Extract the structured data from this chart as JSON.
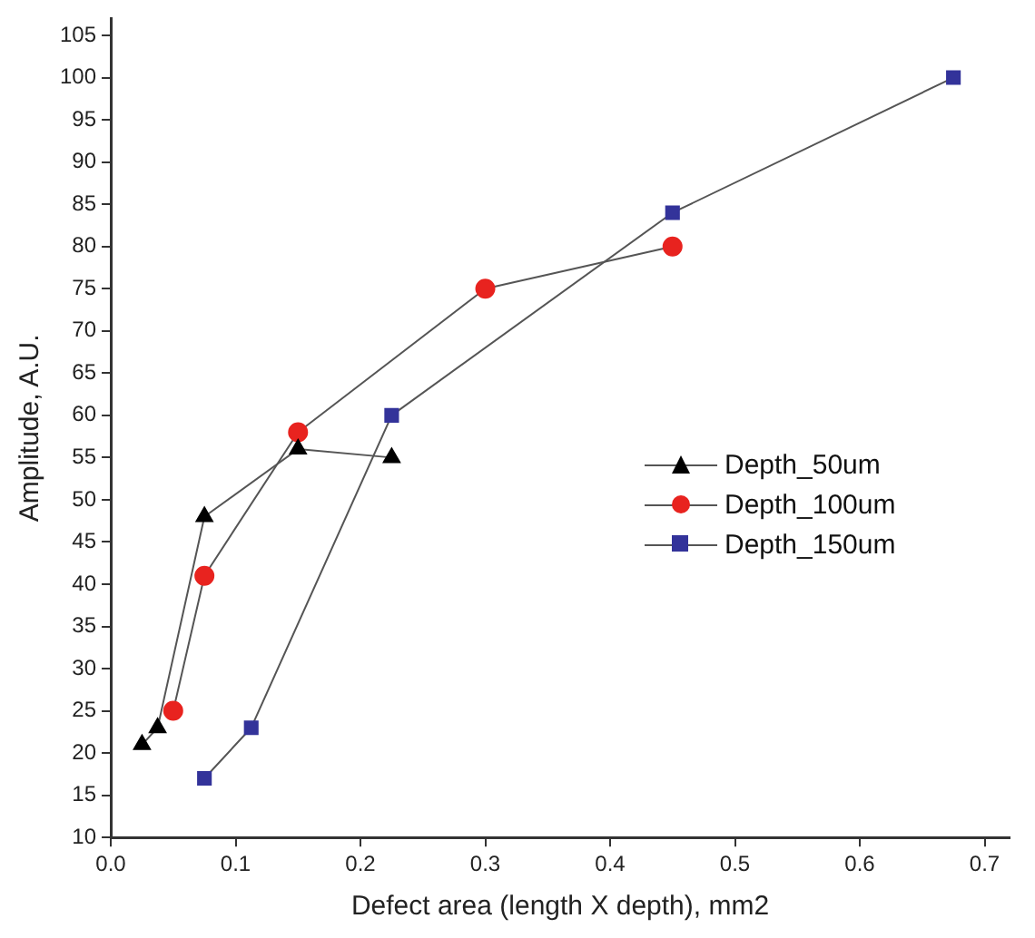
{
  "chart_data": {
    "type": "line",
    "xlabel": "Defect area (length X depth), mm2",
    "ylabel": "Amplitude, A.U.",
    "series": [
      {
        "name": "Depth_50um",
        "color": "#000000",
        "marker": "triangle",
        "x": [
          0.025,
          0.0375,
          0.075,
          0.15,
          0.225
        ],
        "values": [
          21,
          23,
          48,
          56,
          55
        ]
      },
      {
        "name": "Depth_100um",
        "color": "#e8231f",
        "marker": "circle",
        "x": [
          0.05,
          0.075,
          0.15,
          0.3,
          0.45
        ],
        "values": [
          25,
          41,
          58,
          75,
          80
        ]
      },
      {
        "name": "Depth_150um",
        "color": "#33339a",
        "marker": "square",
        "x": [
          0.075,
          0.1125,
          0.225,
          0.45,
          0.675
        ],
        "values": [
          17,
          23,
          60,
          84,
          100
        ]
      }
    ],
    "xlim": [
      0,
      0.72
    ],
    "xticks": [
      {
        "value": 0,
        "label": "0.0"
      },
      0.1,
      0.2,
      0.3,
      0.4,
      0.5,
      0.6,
      0.7
    ],
    "ylim": [
      10,
      107
    ],
    "yticks": [
      10,
      15,
      20,
      25,
      30,
      35,
      40,
      45,
      50,
      55,
      60,
      65,
      70,
      75,
      80,
      85,
      90,
      95,
      100,
      105
    ],
    "grid": false,
    "legend": "right",
    "line_style": "solid"
  }
}
